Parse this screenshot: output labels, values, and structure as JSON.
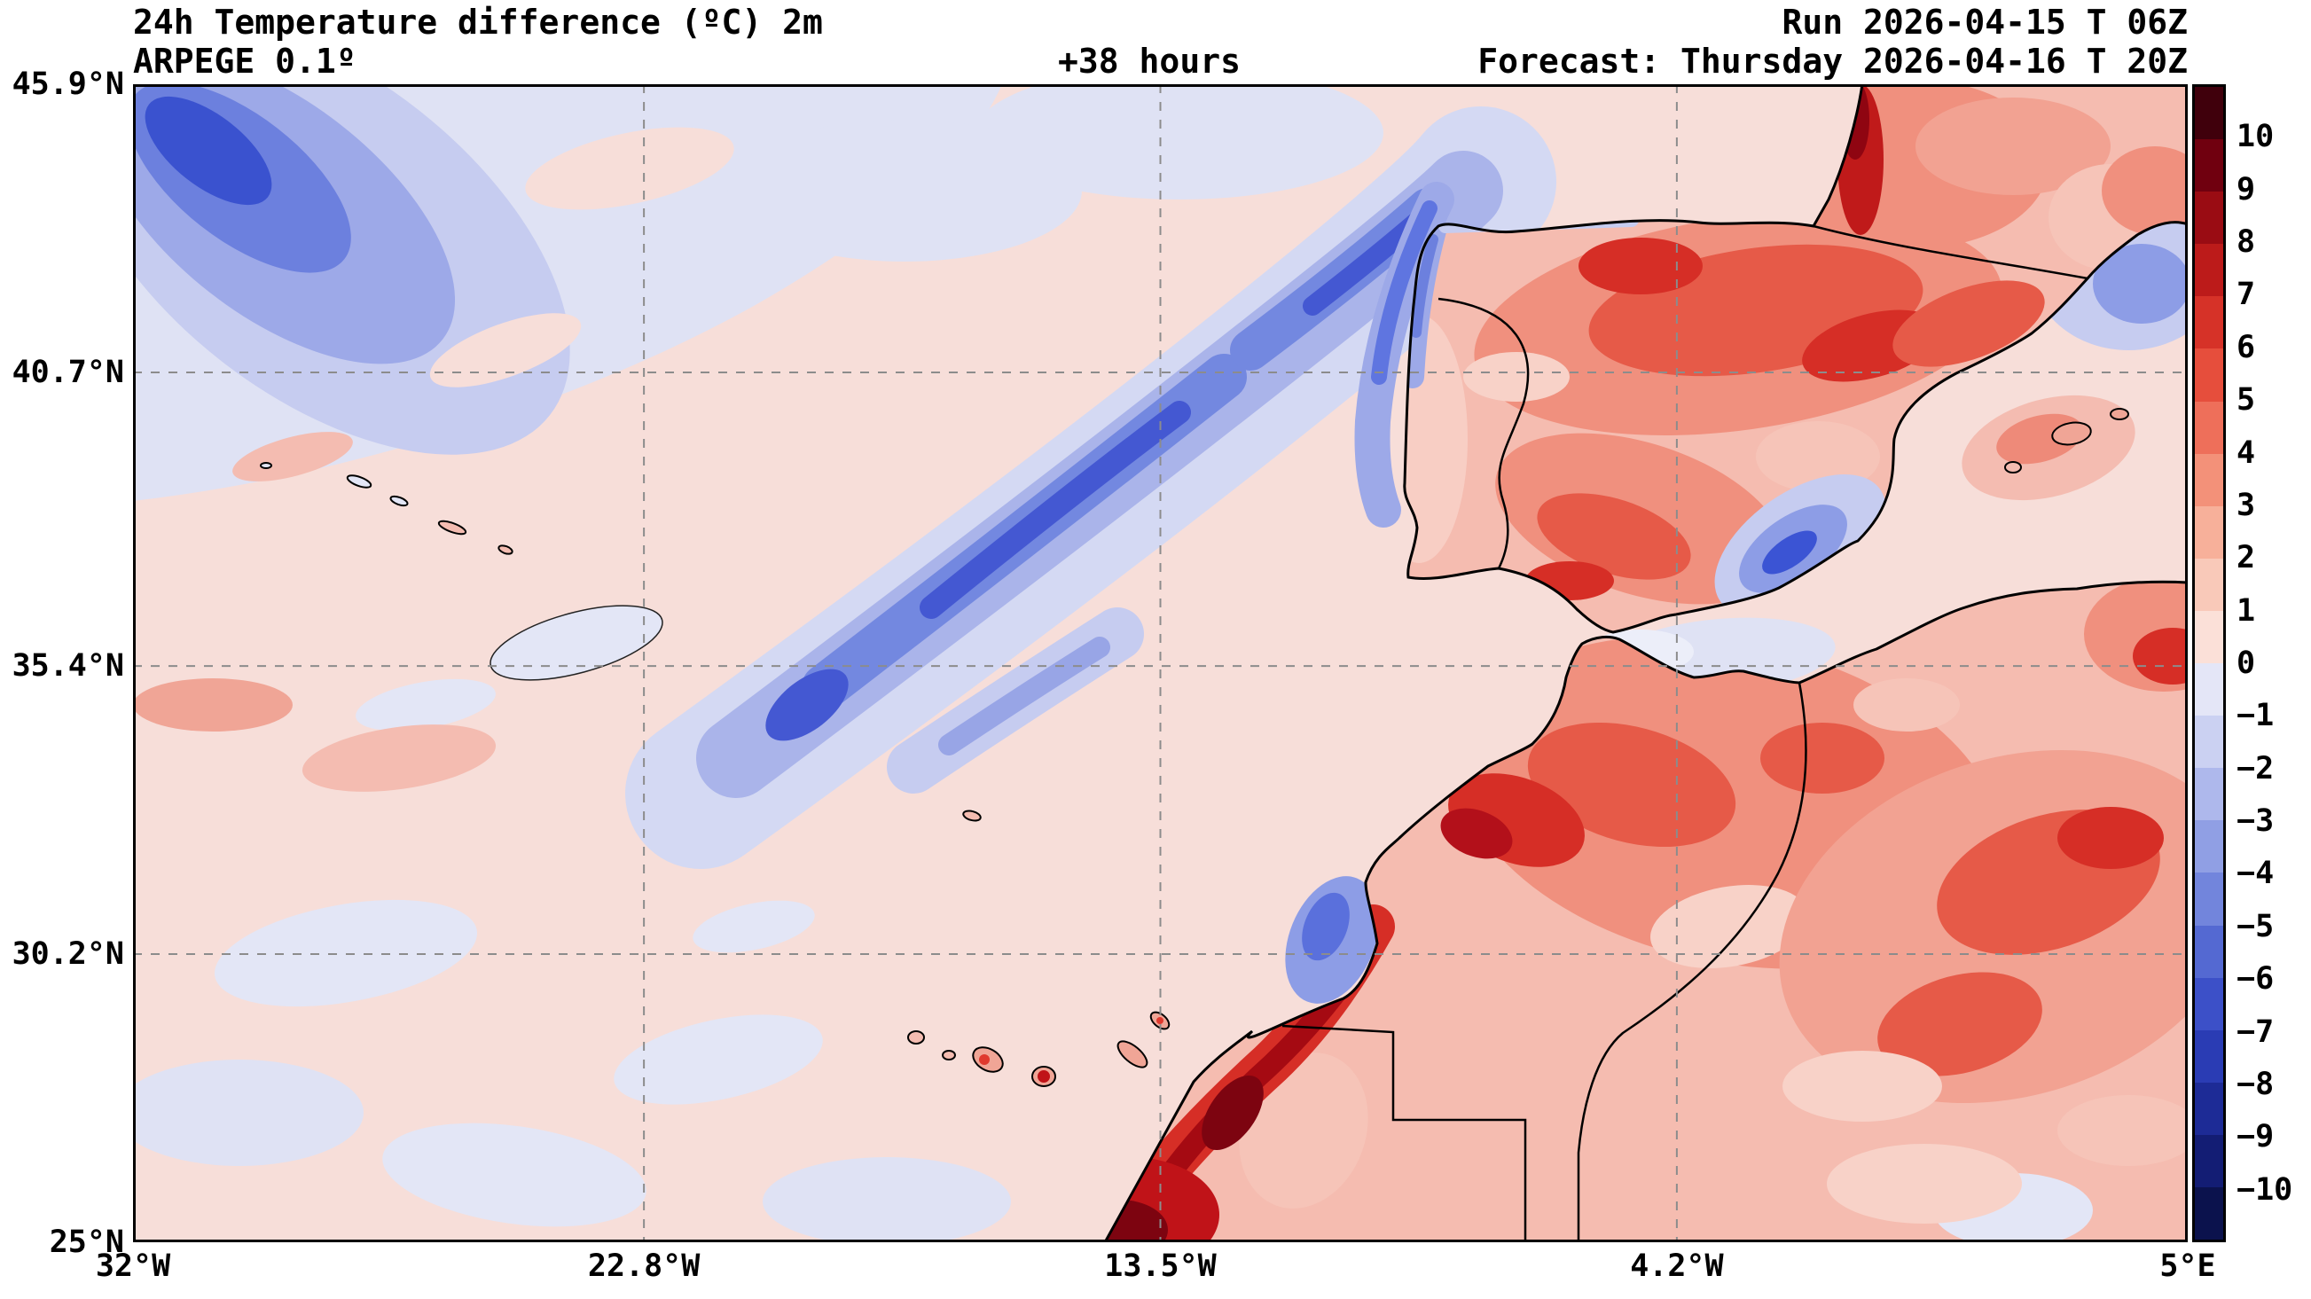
{
  "header": {
    "title": "24h Temperature difference (ºC) 2m",
    "model": "ARPEGE 0.1º",
    "lead_time": "+38 hours",
    "run": "Run 2026-04-15 T 06Z",
    "forecast": "Forecast: Thursday 2026-04-16 T 20Z"
  },
  "chart_data": {
    "type": "heatmap",
    "title": "24h Temperature difference (ºC) 2m",
    "subtitle": "ARPEGE 0.1º",
    "lead_time_hours": 38,
    "run": "2026-04-15 06Z",
    "valid": "Thursday 2026-04-16 20Z",
    "variable": "24-hour 2 m temperature difference (ºC)",
    "grid": true,
    "x_axis": {
      "ticks": [
        "32°W",
        "22.8°W",
        "13.5°W",
        "4.2°W",
        "5°E"
      ],
      "tick_values": [
        -32,
        -22.8,
        -13.5,
        -4.2,
        5
      ],
      "range_deg": [
        -32,
        5
      ],
      "unit": "longitude"
    },
    "y_axis": {
      "ticks": [
        "45.9°N",
        "40.7°N",
        "35.4°N",
        "30.2°N",
        "25°N"
      ],
      "tick_values": [
        45.9,
        40.7,
        35.4,
        30.2,
        25
      ],
      "range_deg": [
        25,
        45.9
      ],
      "unit": "latitude"
    },
    "colorbar": {
      "unit": "ºC",
      "tick_labels": [
        "10",
        "9",
        "8",
        "7",
        "6",
        "5",
        "4",
        "3",
        "2",
        "1",
        "0",
        "−1",
        "−2",
        "−3",
        "−4",
        "−5",
        "−6",
        "−7",
        "−8",
        "−9",
        "−10"
      ],
      "tick_values": [
        10,
        9,
        8,
        7,
        6,
        5,
        4,
        3,
        2,
        1,
        0,
        -1,
        -2,
        -3,
        -4,
        -5,
        -6,
        -7,
        -8,
        -9,
        -10
      ],
      "colors_top_to_bottom": [
        "#40000c",
        "#70000f",
        "#9a0c13",
        "#bc1b1a",
        "#d63228",
        "#e64e3c",
        "#ee6f5a",
        "#f39179",
        "#f7b09a",
        "#f9c9b9",
        "#fbe0d8",
        "#e4e6f7",
        "#cbd1f2",
        "#aeb8ec",
        "#909fe4",
        "#7285dc",
        "#5469d2",
        "#3c50c8",
        "#2a3cb4",
        "#1d2b96",
        "#131d74",
        "#0b124d"
      ]
    },
    "field_summary": [
      {
        "region": "NE Atlantic (top-left corner)",
        "value_range_c": "-3 to -8"
      },
      {
        "region": "SW-NE elongated band over mid-Atlantic toward NW Iberia",
        "value_range_c": "-2 to -5"
      },
      {
        "region": "Iberian Peninsula interior",
        "value_range_c": "+2 to +6"
      },
      {
        "region": "SE Spain small pocket",
        "value_range_c": "-2 to -5"
      },
      {
        "region": "Morocco and Atlas",
        "value_range_c": "+2 to +7"
      },
      {
        "region": "Southern Morocco coast (bottom centre)",
        "value_range_c": "+6 to more than +10"
      },
      {
        "region": "Algeria interior",
        "value_range_c": "+2 to +6"
      },
      {
        "region": "Open subtropical Atlantic",
        "value_range_c": "-1 to +1"
      }
    ]
  }
}
